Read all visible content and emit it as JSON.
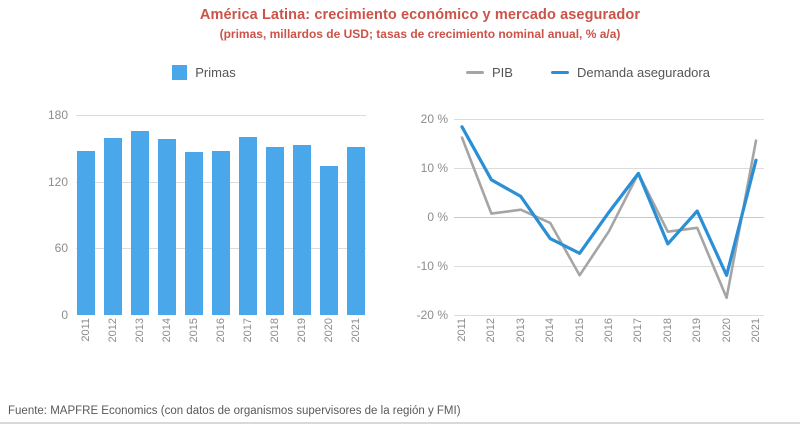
{
  "header": {
    "title": "América Latina: crecimiento económico y mercado asegurador",
    "subtitle": "(primas, millardos de USD; tasas de crecimiento nominal anual, % a/a)"
  },
  "colors": {
    "title_red": "#cd5248",
    "bar_blue": "#4aa8ea",
    "line_blue": "#2b8fd5",
    "line_gray": "#a5a5a5",
    "axis_text": "#8c8c8c",
    "grid": "#dcdcdc",
    "footer_text": "#595959"
  },
  "chart_data": [
    {
      "type": "bar",
      "legend": [
        {
          "label": "Primas",
          "color": "#4aa8ea"
        }
      ],
      "legend_position": "top",
      "categories": [
        "2011",
        "2012",
        "2013",
        "2014",
        "2015",
        "2016",
        "2017",
        "2018",
        "2019",
        "2020",
        "2021"
      ],
      "values": [
        148,
        159,
        166,
        158,
        147,
        148,
        160,
        151,
        153,
        134,
        151
      ],
      "ylim": [
        0,
        180
      ],
      "yticks": [
        "180",
        "120",
        "60",
        "0"
      ],
      "grid": true
    },
    {
      "type": "line",
      "legend": [
        {
          "label": "PIB",
          "color": "#a5a5a5"
        },
        {
          "label": "Demanda aseguradora",
          "color": "#2b8fd5"
        }
      ],
      "legend_position": "top",
      "categories": [
        "2011",
        "2012",
        "2013",
        "2014",
        "2015",
        "2016",
        "2017",
        "2018",
        "2019",
        "2020",
        "2021"
      ],
      "series": [
        {
          "name": "PIB",
          "color": "#a5a5a5",
          "values": [
            16.2,
            0.7,
            1.5,
            -1.2,
            -11.9,
            -2.9,
            8.9,
            -3.0,
            -2.2,
            -16.5,
            15.6
          ]
        },
        {
          "name": "Demanda aseguradora",
          "color": "#2b8fd5",
          "values": [
            18.4,
            7.6,
            4.2,
            -4.4,
            -7.4,
            1.0,
            8.9,
            -5.5,
            1.2,
            -11.9,
            11.6
          ]
        }
      ],
      "ylim": [
        -20,
        20
      ],
      "yticks": [
        "20 %",
        "10 %",
        "0 %",
        "-10 %",
        "-20 %"
      ],
      "grid": true
    }
  ],
  "footer": {
    "source": "Fuente: MAPFRE Economics (con datos de organismos supervisores de la región y FMI)"
  }
}
